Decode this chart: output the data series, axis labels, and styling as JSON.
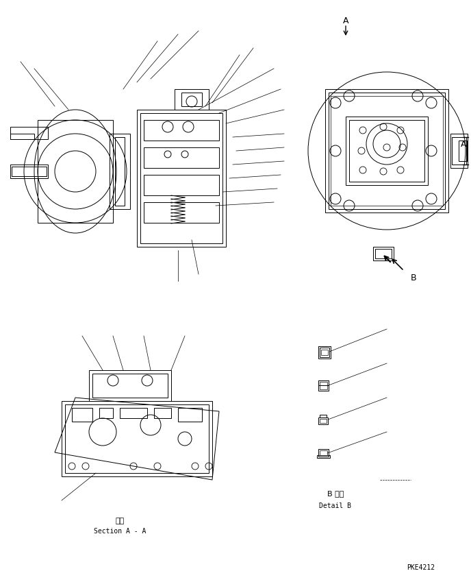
{
  "bg_color": "#ffffff",
  "line_color": "#000000",
  "fig_width": 6.88,
  "fig_height": 8.49,
  "dpi": 100,
  "part_code": "PKE4212",
  "label_section_jp": "断面",
  "label_section_en": "Section A - A",
  "label_detail_jp": "B 詳細",
  "label_detail_en": "Detail B"
}
